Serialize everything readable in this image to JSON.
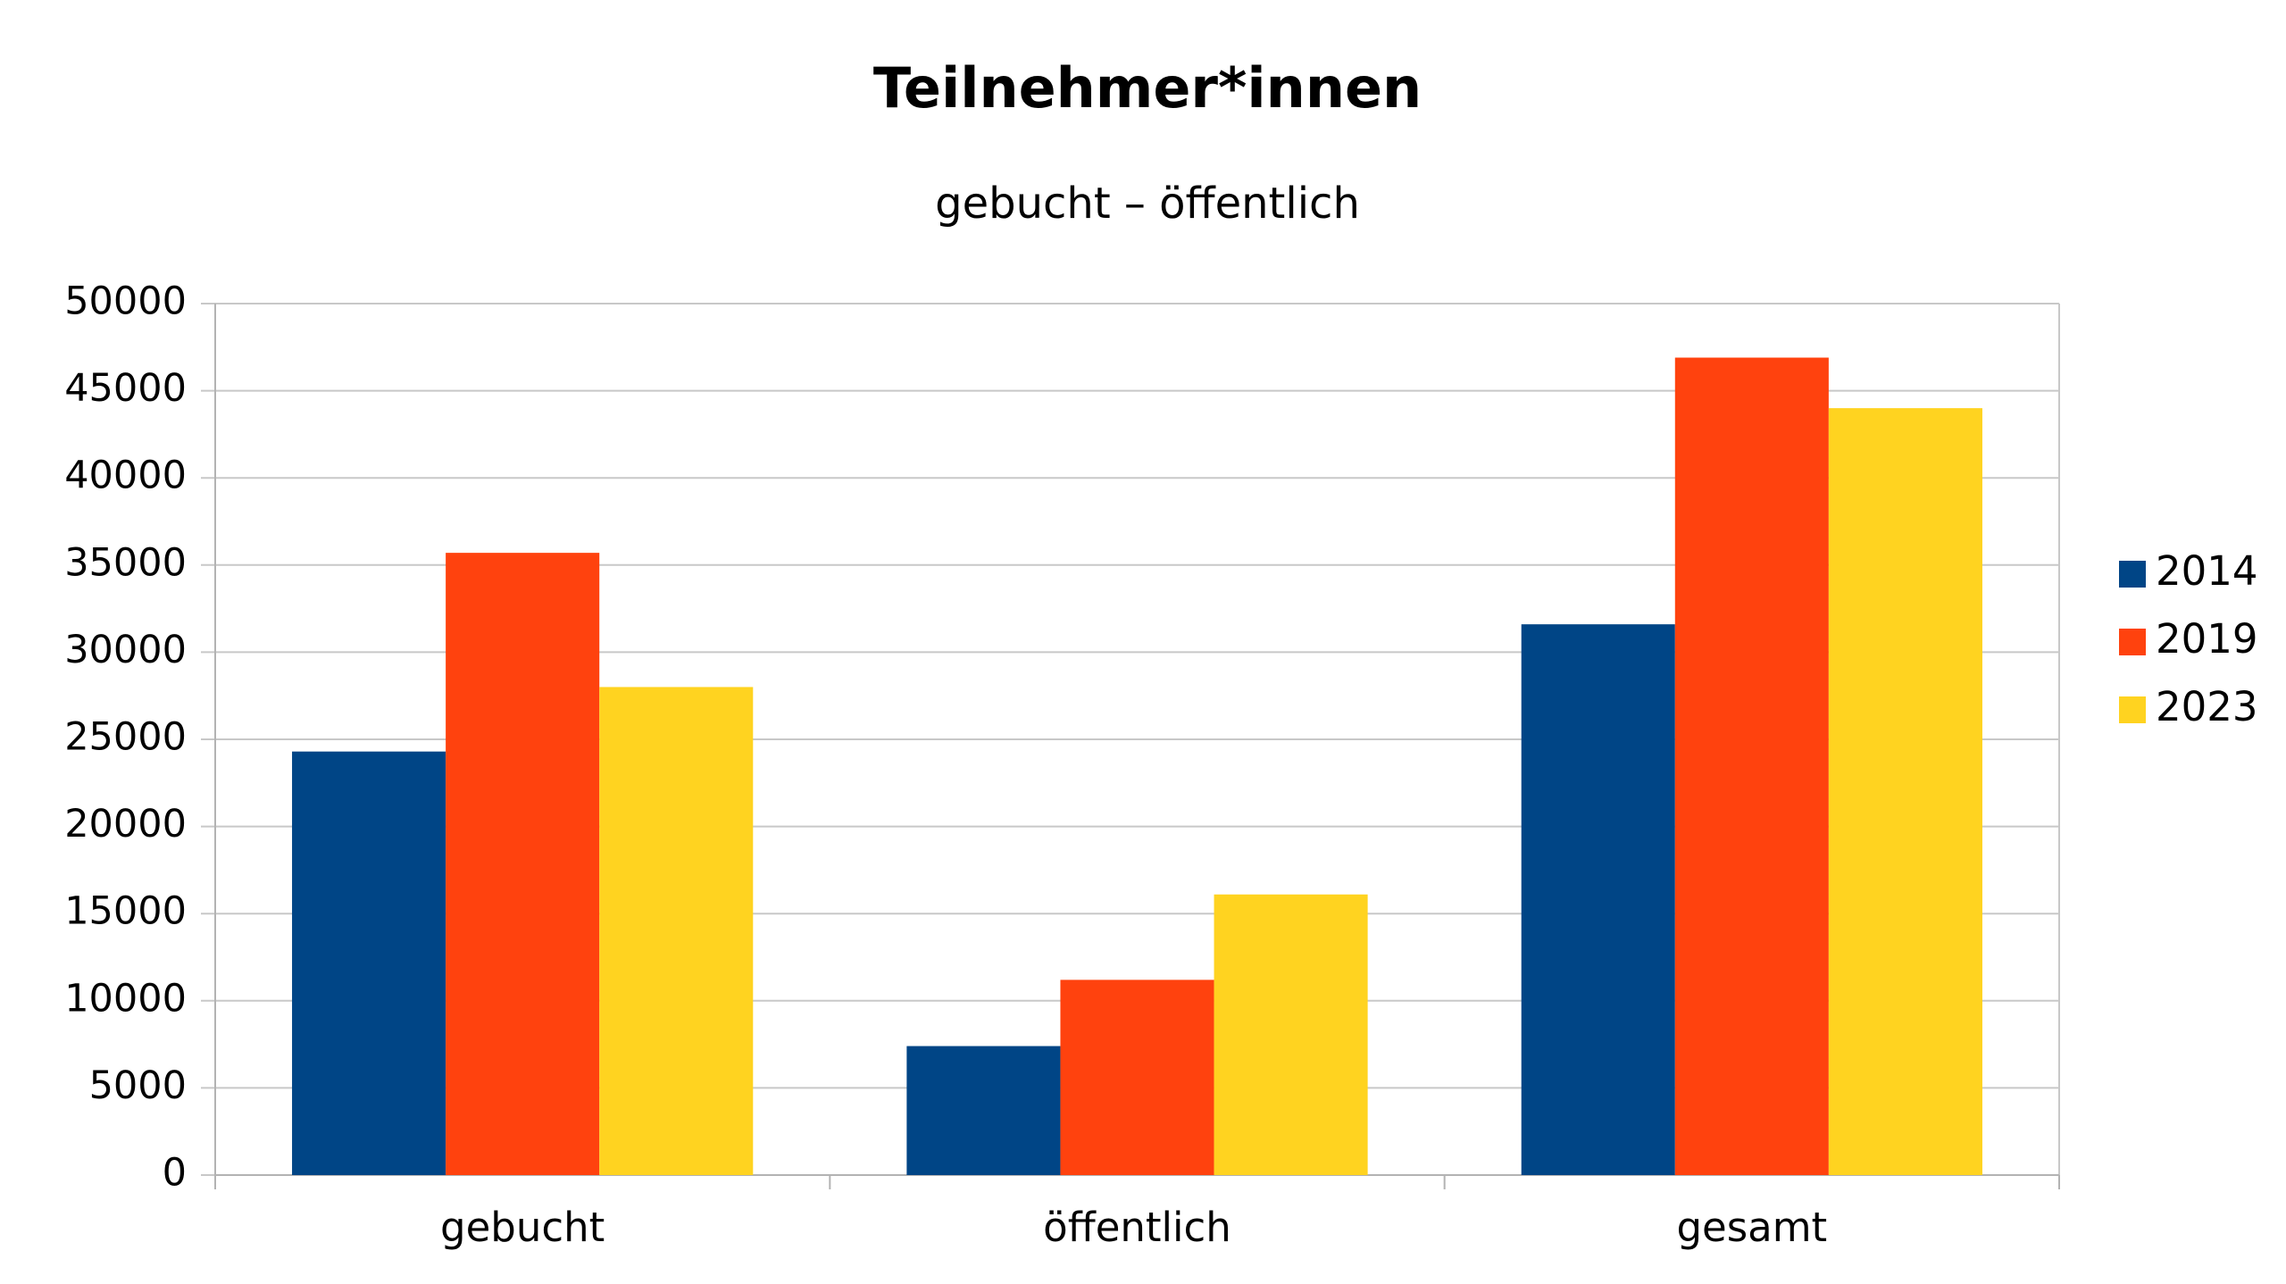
{
  "chart_data": {
    "type": "bar",
    "title": "Teilnehmer*innen",
    "subtitle": "gebucht – öffentlich",
    "categories": [
      "gebucht",
      "öffentlich",
      "gesamt"
    ],
    "series": [
      {
        "name": "2014",
        "color": "#004586",
        "values": [
          24300,
          7400,
          31600
        ]
      },
      {
        "name": "2019",
        "color": "#ff420e",
        "values": [
          35700,
          11200,
          46900
        ]
      },
      {
        "name": "2023",
        "color": "#ffd320",
        "values": [
          28000,
          16100,
          44000
        ]
      }
    ],
    "ylim": [
      0,
      50000
    ],
    "yticks": [
      0,
      5000,
      10000,
      15000,
      20000,
      25000,
      30000,
      35000,
      40000,
      45000,
      50000
    ],
    "grid": true,
    "legend": "right"
  }
}
